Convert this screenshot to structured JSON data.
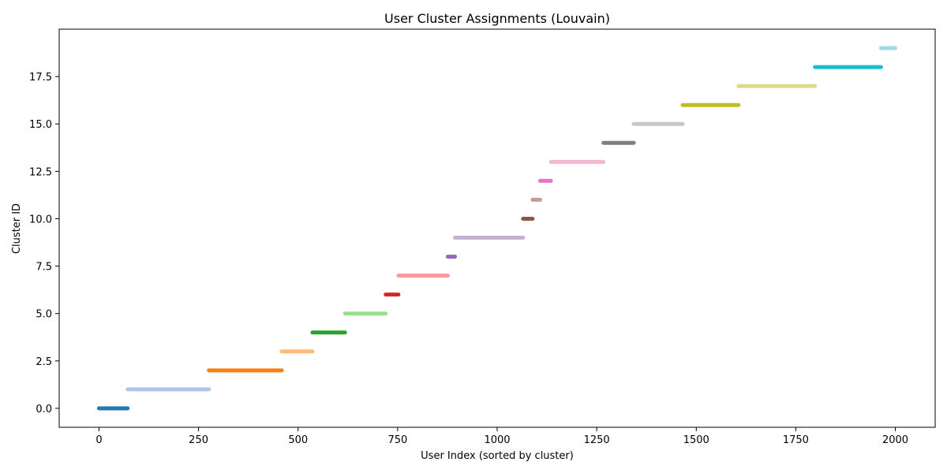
{
  "chart_data": {
    "type": "scatter",
    "title": "User Cluster Assignments (Louvain)",
    "xlabel": "User Index (sorted by cluster)",
    "ylabel": "Cluster ID",
    "xlim": [
      -100,
      2100
    ],
    "ylim": [
      -1,
      20
    ],
    "xticks": [
      0,
      250,
      500,
      750,
      1000,
      1250,
      1500,
      1750,
      2000
    ],
    "xtick_labels": [
      "0",
      "250",
      "500",
      "750",
      "1000",
      "1250",
      "1500",
      "1750",
      "2000"
    ],
    "yticks": [
      0,
      2.5,
      5,
      7.5,
      10,
      12.5,
      15,
      17.5
    ],
    "ytick_labels": [
      "0.0",
      "2.5",
      "5.0",
      "7.5",
      "10.0",
      "12.5",
      "15.0",
      "17.5"
    ],
    "grid": false,
    "legend": "none",
    "series": [
      {
        "cluster": 0,
        "x_start": 0,
        "x_end": 72,
        "color": "#1f77b4"
      },
      {
        "cluster": 1,
        "x_start": 72,
        "x_end": 276,
        "color": "#aec7e8"
      },
      {
        "cluster": 2,
        "x_start": 276,
        "x_end": 459,
        "color": "#ff7f0e"
      },
      {
        "cluster": 3,
        "x_start": 459,
        "x_end": 536,
        "color": "#ffbb78"
      },
      {
        "cluster": 4,
        "x_start": 536,
        "x_end": 618,
        "color": "#2ca02c"
      },
      {
        "cluster": 5,
        "x_start": 618,
        "x_end": 720,
        "color": "#98df8a"
      },
      {
        "cluster": 6,
        "x_start": 720,
        "x_end": 752,
        "color": "#d62728"
      },
      {
        "cluster": 7,
        "x_start": 752,
        "x_end": 876,
        "color": "#ff9896"
      },
      {
        "cluster": 8,
        "x_start": 876,
        "x_end": 894,
        "color": "#9467bd"
      },
      {
        "cluster": 9,
        "x_start": 894,
        "x_end": 1065,
        "color": "#c5b0d5"
      },
      {
        "cluster": 10,
        "x_start": 1065,
        "x_end": 1089,
        "color": "#8c564b"
      },
      {
        "cluster": 11,
        "x_start": 1089,
        "x_end": 1108,
        "color": "#c49c94"
      },
      {
        "cluster": 12,
        "x_start": 1108,
        "x_end": 1135,
        "color": "#e377c2"
      },
      {
        "cluster": 13,
        "x_start": 1135,
        "x_end": 1267,
        "color": "#f7b6d2"
      },
      {
        "cluster": 14,
        "x_start": 1267,
        "x_end": 1343,
        "color": "#7f7f7f"
      },
      {
        "cluster": 15,
        "x_start": 1343,
        "x_end": 1466,
        "color": "#c7c7c7"
      },
      {
        "cluster": 16,
        "x_start": 1466,
        "x_end": 1606,
        "color": "#bcbd22"
      },
      {
        "cluster": 17,
        "x_start": 1606,
        "x_end": 1798,
        "color": "#dbdb8d"
      },
      {
        "cluster": 18,
        "x_start": 1798,
        "x_end": 1964,
        "color": "#17becf"
      },
      {
        "cluster": 19,
        "x_start": 1964,
        "x_end": 2000,
        "color": "#9edae5"
      }
    ]
  }
}
